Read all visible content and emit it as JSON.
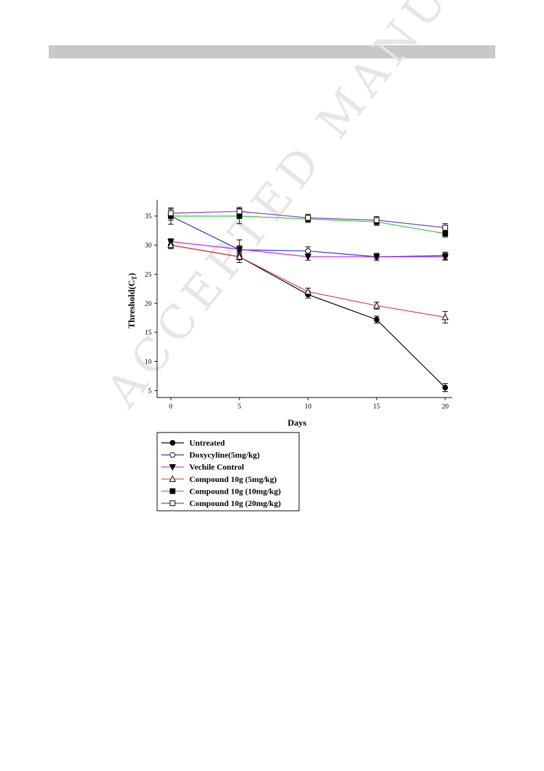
{
  "page": {
    "watermark": "ACCEPTED MANUSCRIPT"
  },
  "chart_data": {
    "type": "line",
    "xlabel": "Days",
    "ylabel": "Threshold(C",
    "ylabel_sub": "T",
    "ylabel_close": ")",
    "x": [
      0,
      5,
      10,
      15,
      20
    ],
    "xlim": [
      -1,
      20.5
    ],
    "ylim": [
      3.8,
      37.8
    ],
    "xticks": [
      0,
      5,
      10,
      15,
      20
    ],
    "yticks": [
      5,
      10,
      15,
      20,
      25,
      30,
      35
    ],
    "grid": false,
    "legend_position": "bottom-left",
    "series": [
      {
        "name": "Untreated",
        "color": "#000000",
        "marker": "circle-filled",
        "values": [
          30.0,
          28.0,
          21.5,
          17.2,
          5.5
        ],
        "errors": [
          0.6,
          0.5,
          0.6,
          0.6,
          0.7
        ]
      },
      {
        "name": "Doxycyline(5mg/kg)",
        "color": "#2233dd",
        "marker": "circle-open",
        "values": [
          35.0,
          29.2,
          29.0,
          28.0,
          28.2
        ],
        "errors": [
          0.7,
          1.7,
          0.7,
          0.6,
          0.6
        ]
      },
      {
        "name": "Vechile Control",
        "color": "#cc22cc",
        "marker": "triangle-down-filled",
        "values": [
          30.6,
          29.3,
          28.0,
          28.0,
          28.0
        ],
        "errors": [
          0.5,
          0.6,
          0.6,
          0.6,
          0.6
        ]
      },
      {
        "name": "Compound 10g (5mg/kg)",
        "color": "#d84040",
        "marker": "triangle-up-open",
        "values": [
          30.0,
          28.0,
          22.0,
          19.6,
          17.6
        ],
        "errors": [
          0.6,
          1.0,
          0.6,
          0.6,
          1.0
        ]
      },
      {
        "name": "Compound 10g (10mg/kg)",
        "color": "#22cc22",
        "marker": "square-filled",
        "values": [
          35.0,
          35.0,
          34.5,
          34.0,
          32.0
        ],
        "errors": [
          1.4,
          1.3,
          0.6,
          0.6,
          0.6
        ]
      },
      {
        "name": "Compound 10g (20mg/kg)",
        "color": "#8833cc",
        "marker": "square-open",
        "values": [
          35.5,
          35.8,
          34.7,
          34.3,
          33.0
        ],
        "errors": [
          0.7,
          0.7,
          0.6,
          0.6,
          0.7
        ]
      }
    ]
  }
}
